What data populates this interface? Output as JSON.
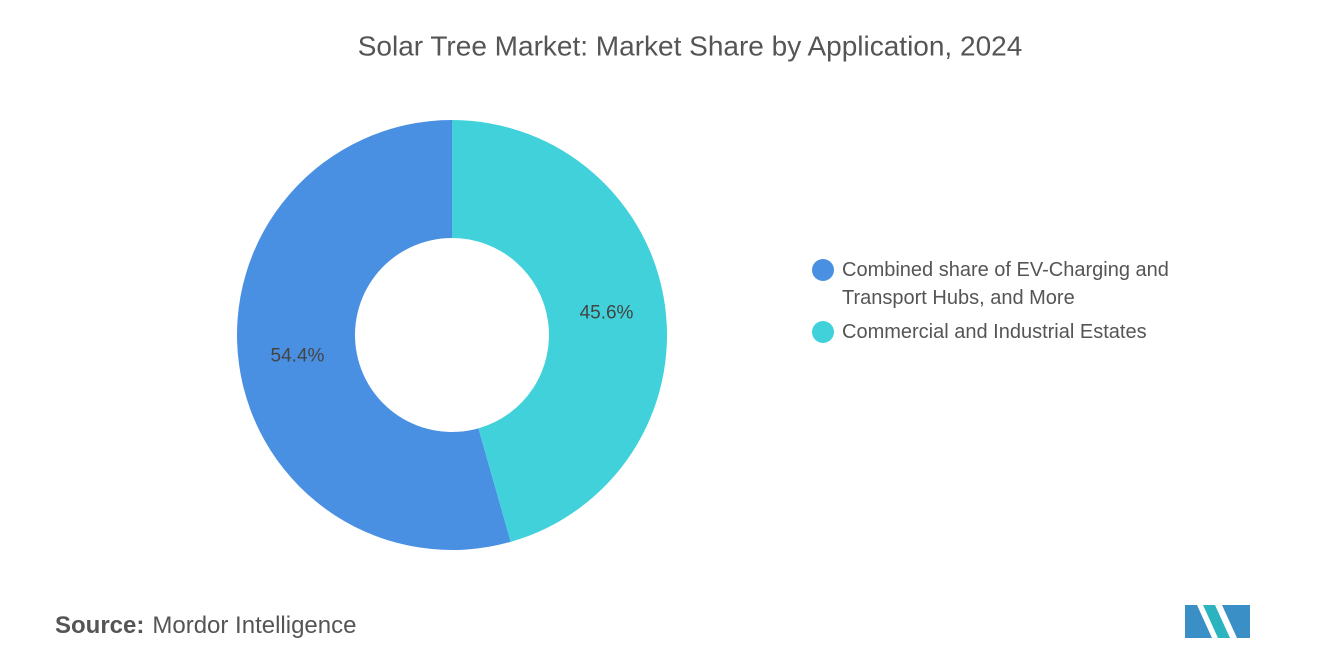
{
  "chart_data": {
    "type": "pie",
    "title": "Solar Tree Market: Market Share by Application, 2024",
    "categories": [
      "Combined share of EV-Charging and Transport Hubs, and More",
      "Commercial and Industrial Estates"
    ],
    "values": [
      54.4,
      45.6
    ],
    "value_labels": [
      "54.4%",
      "45.6%"
    ],
    "colors": [
      "#4a90e2",
      "#41d1da"
    ],
    "source_label": "Source:",
    "source": "Mordor Intelligence"
  }
}
